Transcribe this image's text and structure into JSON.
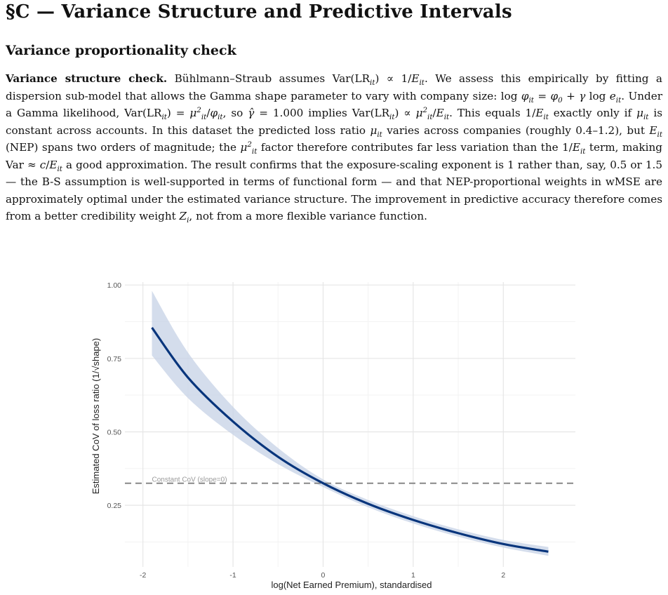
{
  "section_title": "§C — Variance Structure and Predictive Intervals",
  "subsection_title": "Variance proportionality check",
  "paragraph": {
    "lead": "Variance structure check.",
    "s1": " Bühlmann–Straub assumes ",
    "s2": ". We assess this empirically by fitting a dispersion sub-model that allows the Gamma shape parameter to vary with company size: ",
    "s3": ". Under a Gamma likelihood, ",
    "s4": ", so ",
    "s5": " implies ",
    "s6": ". This equals ",
    "s7": " exactly only if ",
    "s8": " is constant across accounts. In this dataset the predicted loss ratio ",
    "s9": " varies across companies (roughly 0.4–1.2), but ",
    "s10": " (NEP) spans two orders of magnitude; the ",
    "s11": " factor therefore contributes far less variation than the ",
    "s12": " term, making ",
    "s13": " a good approximation. The result confirms that the exposure-scaling exponent is 1 rather than, say, 0.5 or 1.5 — the B-S assumption is well-supported in terms of functional form — and that NEP-proportional weights in wMSE are approximately optimal under the estimated variance structure. The improvement in predictive accuracy therefore comes from a better credibility weight ",
    "s14": ", not from a more flexible variance function."
  },
  "chart_data": {
    "type": "line",
    "xlabel": "log(Net Earned Premium), standardised",
    "ylabel": "Estimated CoV of loss ratio  (1/√shape)",
    "xlim": [
      -2.2,
      2.8
    ],
    "ylim": [
      0.04,
      1.01
    ],
    "x_ticks": [
      -2,
      -1,
      0,
      1,
      2
    ],
    "y_ticks": [
      0.25,
      0.5,
      0.75,
      1.0
    ],
    "x_tick_labels": [
      "-2",
      "-1",
      "0",
      "1",
      "2"
    ],
    "y_tick_labels": [
      "0.25",
      "0.50",
      "0.75",
      "1.00"
    ],
    "grid": true,
    "series": [
      {
        "x": [
          -1.9,
          -1.5,
          -1.0,
          -0.5,
          0.0,
          0.5,
          1.0,
          1.5,
          2.0,
          2.5
        ],
        "y": [
          0.855,
          0.685,
          0.535,
          0.415,
          0.325,
          0.255,
          0.2,
          0.155,
          0.118,
          0.092
        ],
        "lower": [
          0.76,
          0.615,
          0.49,
          0.39,
          0.312,
          0.243,
          0.188,
          0.143,
          0.106,
          0.078
        ],
        "upper": [
          0.98,
          0.77,
          0.585,
          0.445,
          0.338,
          0.268,
          0.213,
          0.168,
          0.132,
          0.108
        ],
        "color": "#08357c",
        "band_color": "#c6d2e6"
      }
    ],
    "reference_line": {
      "y": 0.325,
      "label": "Constant CoV (slope=0)",
      "color": "#888888"
    }
  }
}
